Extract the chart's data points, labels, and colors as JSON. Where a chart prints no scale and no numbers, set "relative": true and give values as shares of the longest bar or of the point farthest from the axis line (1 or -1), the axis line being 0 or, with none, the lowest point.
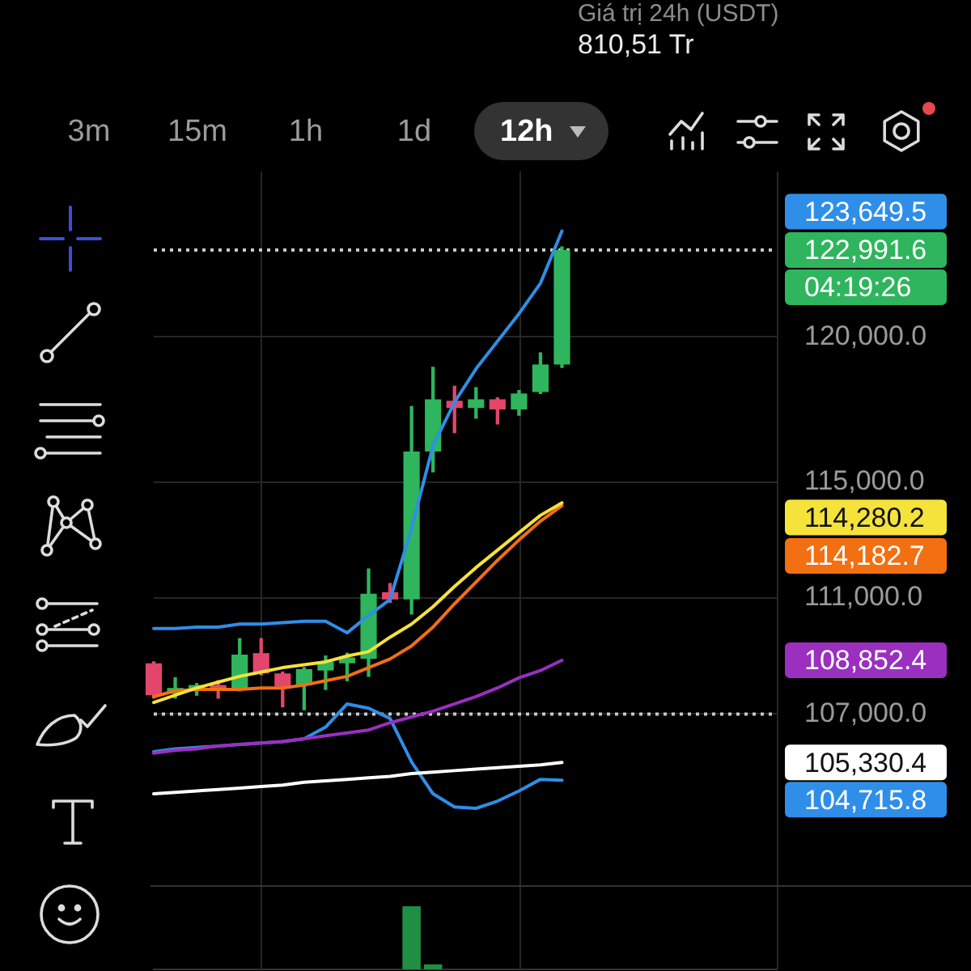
{
  "chart_data": [
    {
      "type": "candlestick",
      "annotations": [
        "Giá trị 24h (USDT)",
        "810,51 Tr",
        "3m",
        "15m",
        "1h",
        "1d",
        "12h",
        "04:19:26",
        "123,649.5",
        "114,280.2",
        "114,182.7",
        "108,852.4",
        "105,330.4",
        "104,715.8"
      ],
      "categories": [
        null,
        null,
        null,
        null,
        null,
        null,
        null,
        null,
        null,
        null,
        null,
        null,
        null,
        null,
        null,
        null,
        null,
        null,
        null,
        null,
        null,
        null,
        null,
        null,
        null,
        null,
        null,
        null,
        null,
        null
      ],
      "ohlc": [
        [
          108750,
          108800,
          107550,
          107650
        ],
        [
          107700,
          108250,
          107550,
          107900
        ],
        [
          107800,
          108050,
          107650,
          108000
        ],
        [
          108000,
          108150,
          107550,
          107800
        ],
        [
          107850,
          109600,
          107800,
          109050
        ],
        [
          109100,
          109600,
          108350,
          108400
        ],
        [
          108400,
          108450,
          107250,
          107950
        ],
        [
          108000,
          108600,
          107150,
          108550
        ],
        [
          108500,
          109000,
          107850,
          108800
        ],
        [
          108750,
          109100,
          108150,
          108950
        ],
        [
          108900,
          112000,
          108300,
          111150
        ],
        [
          111200,
          111500,
          110850,
          110950
        ],
        [
          110950,
          117600,
          110450,
          116050
        ],
        [
          116050,
          118950,
          115350,
          117850
        ],
        [
          117800,
          118300,
          116700,
          117550
        ],
        [
          117550,
          118250,
          117200,
          117850
        ],
        [
          117850,
          117900,
          117000,
          117500
        ],
        [
          117500,
          118150,
          117300,
          118050
        ],
        [
          118100,
          119450,
          118050,
          119050
        ],
        [
          119050,
          123100,
          118950,
          122991.6
        ],
        null,
        null,
        null,
        null,
        null,
        null,
        null,
        null,
        null,
        null
      ],
      "colors": [
        "#e2466a",
        "#2fb55d",
        "#2fb55d",
        "#e2466a",
        "#2fb55d",
        "#e2466a",
        "#e2466a",
        "#2fb55d",
        "#2fb55d",
        "#2fb55d",
        "#2fb55d",
        "#e2466a",
        "#2fb55d",
        "#2fb55d",
        "#e2466a",
        "#2fb55d",
        "#e2466a",
        "#2fb55d",
        "#2fb55d",
        "#2fb55d",
        null,
        null,
        null,
        null,
        null,
        null,
        null,
        null,
        null,
        null
      ],
      "series": [
        {
          "type": "line",
          "color": "#2f8ee8",
          "values": [
            109950,
            109950,
            110000,
            110000,
            110100,
            110100,
            110150,
            110200,
            110200,
            109800,
            110400,
            110950,
            113400,
            116250,
            117750,
            118900,
            119850,
            120800,
            121850,
            123649.5,
            null,
            null,
            null,
            null,
            null,
            null,
            null,
            null,
            null,
            null
          ]
        },
        {
          "type": "line",
          "color": "#f5e23b",
          "values": [
            107400,
            107650,
            107900,
            108100,
            108300,
            108450,
            108600,
            108700,
            108800,
            109000,
            109150,
            109650,
            110100,
            110700,
            111400,
            112050,
            112650,
            113250,
            113850,
            114280.2,
            null,
            null,
            null,
            null,
            null,
            null,
            null,
            null,
            null,
            null
          ]
        },
        {
          "type": "line",
          "color": "#f26f12",
          "values": [
            107600,
            107800,
            107850,
            107850,
            107850,
            107900,
            107900,
            108000,
            108150,
            108300,
            108600,
            108900,
            109350,
            110000,
            110800,
            111550,
            112300,
            113000,
            113650,
            114182.7,
            null,
            null,
            null,
            null,
            null,
            null,
            null,
            null,
            null,
            null
          ]
        },
        {
          "type": "line",
          "color": "#9a2fc0",
          "values": [
            105650,
            105750,
            105800,
            105900,
            105950,
            106000,
            106050,
            106150,
            106250,
            106350,
            106450,
            106700,
            106900,
            107100,
            107350,
            107600,
            107900,
            108250,
            108500,
            108852.4,
            null,
            null,
            null,
            null,
            null,
            null,
            null,
            null,
            null,
            null
          ]
        },
        {
          "type": "line",
          "color": "#ffffff",
          "values": [
            104250,
            104300,
            104350,
            104400,
            104450,
            104500,
            104550,
            104650,
            104700,
            104750,
            104800,
            104850,
            104950,
            105000,
            105050,
            105100,
            105150,
            105200,
            105250,
            105330.4,
            null,
            null,
            null,
            null,
            null,
            null,
            null,
            null,
            null,
            null
          ]
        },
        {
          "type": "line",
          "color": "#2f8ee8",
          "values": [
            105700,
            105800,
            105850,
            105900,
            105950,
            106000,
            106050,
            106150,
            106550,
            107350,
            107200,
            106850,
            105350,
            104250,
            103800,
            103750,
            104000,
            104350,
            104750,
            104715.8,
            null,
            null,
            null,
            null,
            null,
            null,
            null,
            null,
            null,
            null
          ]
        }
      ],
      "ylim": [
        101100,
        125700
      ],
      "yticks": [
        {
          "value": 107000,
          "label": "107,000.0"
        },
        {
          "value": 111000,
          "label": "111,000.0"
        },
        {
          "value": 115000,
          "label": "115,000.0"
        },
        {
          "value": 120000,
          "label": "120,000.0"
        }
      ],
      "ref_lines": [
        {
          "axis": "y",
          "value": 122991.6,
          "label": "122,991.6",
          "color": "#c8c8c8",
          "line_style": "dotted"
        },
        {
          "axis": "y",
          "value": 107000,
          "color": "#c8c8c8",
          "line_style": "dotted"
        }
      ],
      "grid": true,
      "tick_labels": "y"
    },
    {
      "type": "bar",
      "relative": true,
      "categories": [
        null,
        null,
        null,
        null,
        null,
        null,
        null,
        null,
        null,
        null,
        null,
        null,
        null,
        null,
        null,
        null,
        null,
        null,
        null,
        null,
        null,
        null,
        null,
        null,
        null,
        null,
        null,
        null,
        null,
        null
      ],
      "values": [
        null,
        null,
        null,
        null,
        null,
        null,
        null,
        null,
        null,
        null,
        null,
        null,
        1,
        0.08,
        null,
        null,
        null,
        null,
        null,
        null,
        null,
        null,
        null,
        null,
        null,
        null,
        null,
        null,
        null,
        null
      ],
      "color": "#1f8f43",
      "grid": "x",
      "tick_labels": false
    }
  ]
}
